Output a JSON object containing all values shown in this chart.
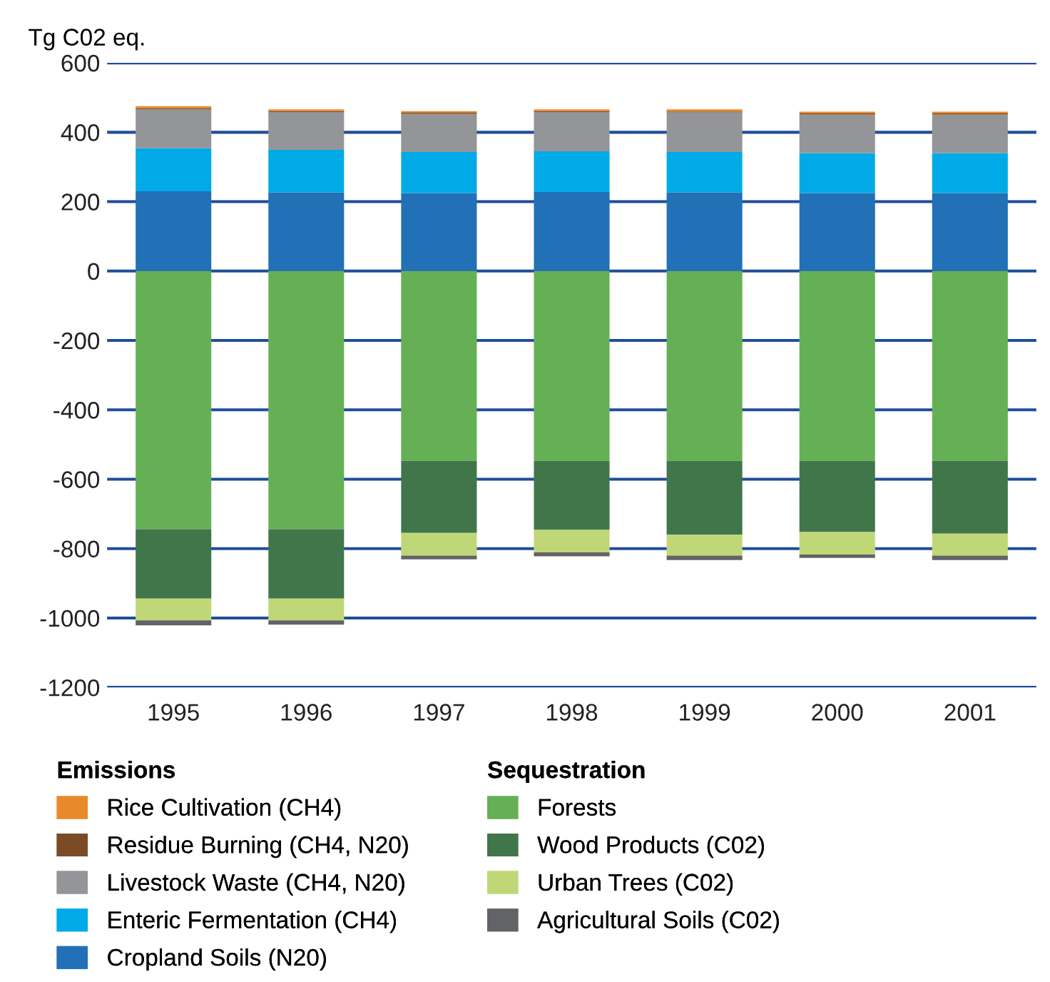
{
  "chart_data": {
    "type": "bar",
    "stacked": true,
    "ylabel": "Tg C02 eq.",
    "legend_title": [
      "Emissions",
      "Sequestration"
    ],
    "categories": [
      "1995",
      "1996",
      "1997",
      "1998",
      "1999",
      "2000",
      "2001"
    ],
    "ylim": [
      -1200,
      600
    ],
    "yticks": [
      -1200,
      -1000,
      -800,
      -600,
      -400,
      -200,
      0,
      200,
      400,
      600
    ],
    "grid": "y",
    "legend": "bottom",
    "series": [
      {
        "name": "Cropland Soils (N20)",
        "color": "#2270b5",
        "values": [
          230,
          227,
          225,
          228,
          227,
          225,
          225
        ]
      },
      {
        "name": "Enteric Fermentation (CH4)",
        "color": "#00aae7",
        "values": [
          124,
          122,
          118,
          117,
          116,
          115,
          115
        ]
      },
      {
        "name": "Livestock Waste (CH4, N20)",
        "color": "#939598",
        "values": [
          112,
          109,
          110,
          113,
          114,
          111,
          111
        ]
      },
      {
        "name": "Residue Burning (CH4, N20)",
        "color": "#7b4a26",
        "values": [
          3,
          3,
          3,
          3,
          3,
          3,
          3
        ]
      },
      {
        "name": "Rice Cultivation (CH4)",
        "color": "#e8892c",
        "values": [
          6,
          5,
          5,
          5,
          6,
          5,
          5
        ]
      },
      {
        "name": "Forests",
        "color": "#65b055",
        "values": [
          -744,
          -744,
          -547,
          -547,
          -547,
          -547,
          -547
        ]
      },
      {
        "name": "Wood Products (C02)",
        "color": "#41764b",
        "values": [
          -200,
          -200,
          -208,
          -199,
          -213,
          -205,
          -210
        ]
      },
      {
        "name": "Urban Trees (C02)",
        "color": "#c0d777",
        "values": [
          -63,
          -63,
          -65,
          -65,
          -60,
          -65,
          -63
        ]
      },
      {
        "name": "Agricultural Soils (C02)",
        "color": "#626366",
        "values": [
          -14,
          -12,
          -11,
          -11,
          -13,
          -10,
          -13
        ]
      }
    ]
  }
}
